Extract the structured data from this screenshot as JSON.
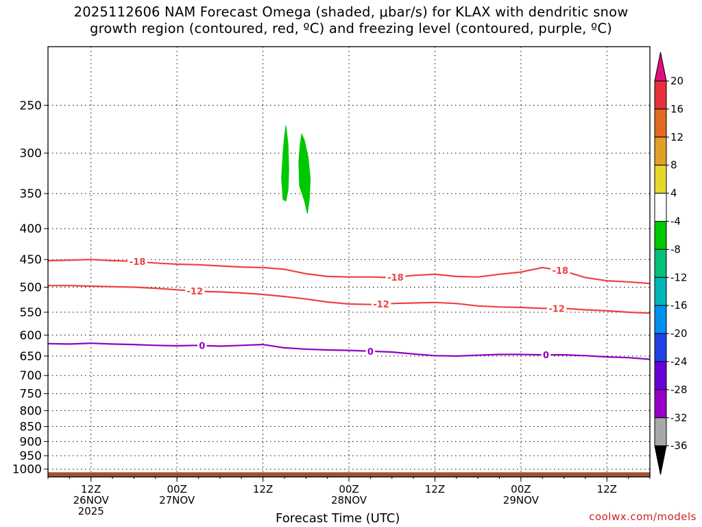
{
  "title": {
    "line1": "2025112606 NAM Forecast Omega (shaded, μbar/s) for KLAX with dendritic snow",
    "line2": "growth region (contoured, red, ºC) and freezing level (contoured, purple, ºC)"
  },
  "credit": "coolwx.com/models",
  "chart_data": {
    "type": "time-height contour",
    "xlabel": "Forecast Time (UTC)",
    "x_ticks": [
      {
        "hour": 6,
        "lines": [
          "12Z",
          "26NOV",
          "2025"
        ]
      },
      {
        "hour": 18,
        "lines": [
          "00Z",
          "27NOV"
        ]
      },
      {
        "hour": 30,
        "lines": [
          "12Z"
        ]
      },
      {
        "hour": 42,
        "lines": [
          "00Z",
          "28NOV"
        ]
      },
      {
        "hour": 54,
        "lines": [
          "12Z"
        ]
      },
      {
        "hour": 66,
        "lines": [
          "00Z",
          "29NOV"
        ]
      },
      {
        "hour": 78,
        "lines": [
          "12Z"
        ]
      }
    ],
    "xlim_hours": [
      0,
      84
    ],
    "y_ticks": [
      250,
      300,
      350,
      400,
      450,
      500,
      550,
      600,
      650,
      700,
      750,
      800,
      850,
      900,
      950,
      1000
    ],
    "ylim_hpa": [
      200,
      1030
    ],
    "grid": true,
    "colorbar": {
      "labels": [
        "20",
        "16",
        "12",
        "8",
        "4",
        "-4",
        "-8",
        "-12",
        "-16",
        "-20",
        "-24",
        "-28",
        "-32",
        "-36"
      ],
      "top_arrow_color": "#e0107a",
      "bottom_arrow_color": "#000000",
      "bins": [
        "#e8303c",
        "#e26a22",
        "#e0a02a",
        "#e6d82a",
        "#ffffff",
        "#00c800",
        "#00c07a",
        "#00b6b6",
        "#0090f0",
        "#2040e6",
        "#6a00d8",
        "#9800c8",
        "#a8a8a8"
      ]
    },
    "contours": [
      {
        "label": "-18",
        "color": "#f04040",
        "points": [
          [
            0,
            452
          ],
          [
            3,
            451
          ],
          [
            6,
            450
          ],
          [
            9,
            452
          ],
          [
            12,
            453
          ],
          [
            15,
            456
          ],
          [
            18,
            458
          ],
          [
            21,
            459
          ],
          [
            24,
            461
          ],
          [
            27,
            463
          ],
          [
            30,
            464
          ],
          [
            33,
            467
          ],
          [
            36,
            475
          ],
          [
            39,
            480
          ],
          [
            42,
            481
          ],
          [
            45,
            481
          ],
          [
            48,
            482
          ],
          [
            51,
            478
          ],
          [
            54,
            476
          ],
          [
            57,
            480
          ],
          [
            60,
            481
          ],
          [
            63,
            476
          ],
          [
            66,
            472
          ],
          [
            69,
            464
          ],
          [
            72,
            470
          ],
          [
            75,
            482
          ],
          [
            78,
            488
          ],
          [
            81,
            490
          ],
          [
            84,
            493
          ]
        ],
        "label_hours": [
          12.5,
          48.5,
          71.5
        ]
      },
      {
        "label": "-12",
        "color": "#f04040",
        "points": [
          [
            0,
            497
          ],
          [
            3,
            497
          ],
          [
            6,
            498
          ],
          [
            9,
            499
          ],
          [
            12,
            500
          ],
          [
            15,
            502
          ],
          [
            18,
            505
          ],
          [
            21,
            508
          ],
          [
            24,
            509
          ],
          [
            27,
            511
          ],
          [
            30,
            514
          ],
          [
            33,
            518
          ],
          [
            36,
            523
          ],
          [
            39,
            529
          ],
          [
            42,
            533
          ],
          [
            45,
            534
          ],
          [
            48,
            532
          ],
          [
            51,
            531
          ],
          [
            54,
            530
          ],
          [
            57,
            532
          ],
          [
            60,
            537
          ],
          [
            63,
            539
          ],
          [
            66,
            540
          ],
          [
            69,
            542
          ],
          [
            72,
            542
          ],
          [
            75,
            545
          ],
          [
            78,
            547
          ],
          [
            81,
            550
          ],
          [
            84,
            552
          ]
        ],
        "label_hours": [
          20.5,
          46.5,
          71
        ]
      },
      {
        "label": "0",
        "color": "#9000c0",
        "points": [
          [
            0,
            620
          ],
          [
            3,
            621
          ],
          [
            6,
            619
          ],
          [
            9,
            621
          ],
          [
            12,
            622
          ],
          [
            15,
            624
          ],
          [
            18,
            625
          ],
          [
            21,
            624
          ],
          [
            24,
            626
          ],
          [
            27,
            624
          ],
          [
            30,
            622
          ],
          [
            33,
            630
          ],
          [
            36,
            633
          ],
          [
            39,
            635
          ],
          [
            42,
            636
          ],
          [
            45,
            638
          ],
          [
            48,
            640
          ],
          [
            51,
            645
          ],
          [
            54,
            649
          ],
          [
            57,
            650
          ],
          [
            60,
            648
          ],
          [
            63,
            646
          ],
          [
            66,
            646
          ],
          [
            69,
            647
          ],
          [
            72,
            647
          ],
          [
            75,
            649
          ],
          [
            78,
            652
          ],
          [
            81,
            654
          ],
          [
            84,
            658
          ]
        ],
        "label_hours": [
          21.5,
          45,
          69.5
        ]
      }
    ],
    "shaded_regions": [
      {
        "value_bin": "-4 to -8",
        "color": "#00c800",
        "outline": [
          [
            32.8,
            358
          ],
          [
            32.6,
            330
          ],
          [
            32.8,
            300
          ],
          [
            33.0,
            282
          ],
          [
            33.2,
            270
          ],
          [
            33.5,
            290
          ],
          [
            33.6,
            320
          ],
          [
            33.5,
            345
          ],
          [
            33.2,
            360
          ]
        ]
      },
      {
        "value_bin": "-4 to -8",
        "color": "#00c800",
        "outline": [
          [
            35.1,
            340
          ],
          [
            35.0,
            310
          ],
          [
            35.2,
            290
          ],
          [
            35.4,
            279
          ],
          [
            35.8,
            286
          ],
          [
            36.3,
            305
          ],
          [
            36.6,
            330
          ],
          [
            36.5,
            355
          ],
          [
            36.2,
            378
          ],
          [
            35.8,
            360
          ]
        ]
      }
    ],
    "terrain": {
      "color": "#a0522d",
      "top_hpa": 1012
    }
  }
}
